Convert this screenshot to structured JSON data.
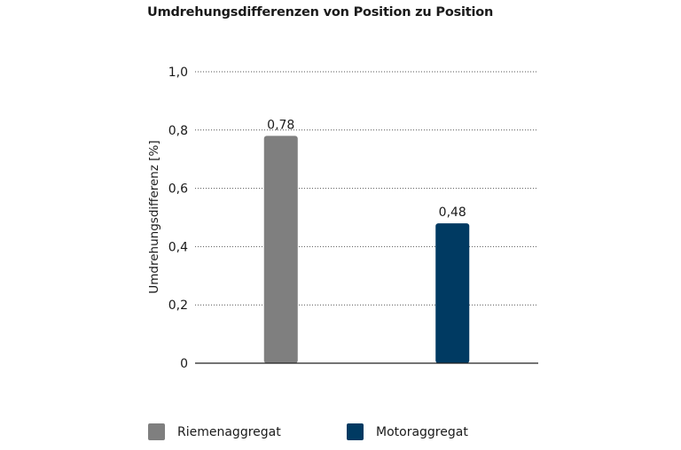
{
  "chart_data": {
    "type": "bar",
    "title": "Umdrehungsdifferenzen von Position zu Position",
    "ylabel": "Umdrehungsdifferenz [%]",
    "xlabel": "",
    "ylim": [
      0,
      1.0
    ],
    "yticks": [
      "0",
      "0,2",
      "0,4",
      "0,6",
      "0,8",
      "1,0"
    ],
    "grid": "horizontal dotted",
    "legend_position": "bottom",
    "categories": [
      "Riemenaggregat",
      "Motoraggregat"
    ],
    "values": [
      0.78,
      0.48
    ],
    "value_labels": [
      "0,78",
      "0,48"
    ],
    "colors": [
      "#7f7f7f",
      "#003a62"
    ]
  }
}
